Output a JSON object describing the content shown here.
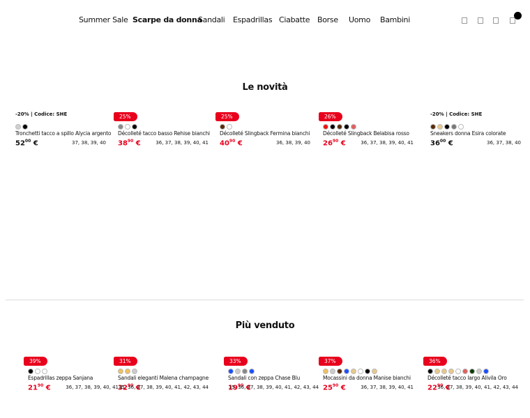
{
  "nav": {
    "items": [
      "Summer Sale",
      "Scarpe da donna",
      "Sandali",
      "Espadrillas",
      "Ciabatte",
      "Borse",
      "Uomo",
      "Bambini"
    ],
    "active": 1
  },
  "sections": [
    {
      "title": "Le novità",
      "products": [
        {
          "promo": "-20% | Codice: SHE",
          "swatches": [
            "#d0d0d0",
            "#000000"
          ],
          "name": "Tronchetti tacco a spillo Alycia argento",
          "price": {
            "main": "52",
            "cents": "00",
            "currency": "€"
          },
          "sizes": "37, 38, 39, 40",
          "sale": false
        },
        {
          "badge": "25%",
          "swatches": [
            "#8a8a8a",
            "#ffffff",
            "#000000"
          ],
          "name": "Décolleté tacco basso Rehise bianchi",
          "price": {
            "main": "38",
            "cents": "90",
            "currency": "€"
          },
          "sizes": "36, 37, 38, 39, 40, 41",
          "sale": true
        },
        {
          "badge": "25%",
          "swatches": [
            "#5a2a0a",
            "#ffffff"
          ],
          "name": "Décolleté Slingback Fermina bianchi",
          "price": {
            "main": "40",
            "cents": "90",
            "currency": "€"
          },
          "sizes": "36, 38, 39, 40",
          "sale": true
        },
        {
          "badge": "26%",
          "swatches": [
            "#ee1111",
            "#000000",
            "#5a2a0a",
            "#000000",
            "#e06060"
          ],
          "name": "Décolleté Slingback Belabisa rosso",
          "price": {
            "main": "26",
            "cents": "90",
            "currency": "€"
          },
          "sizes": "36, 37, 38, 39, 40, 41",
          "sale": true
        },
        {
          "promo": "-20% | Codice: SHE",
          "swatches": [
            "#5a2a0a",
            "#e8c88a",
            "#000000",
            "#777777",
            "#ffffff"
          ],
          "name": "Sneakers donna Esira colorate",
          "price": {
            "main": "36",
            "cents": "00",
            "currency": "€"
          },
          "sizes": "36, 37, 38, 40",
          "sale": false
        }
      ]
    },
    {
      "title": "Più venduto",
      "products": [
        {
          "badge": "39%",
          "swatches": [
            "#000000",
            "#ffffff",
            "#ffffff"
          ],
          "name": "Espadrillas zeppa Sanjana",
          "price": {
            "main": "21",
            "cents": "90",
            "currency": "€"
          },
          "sizes": "36, 37, 38, 39, 40, 41",
          "sale": true
        },
        {
          "badge": "31%",
          "swatches": [
            "#f0c060",
            "#f0c060",
            "#cccccc"
          ],
          "name": "Sandali eleganti Malena champagne",
          "price": {
            "main": "32",
            "cents": "90",
            "currency": "€"
          },
          "sizes": "35, 36, 37, 38, 39, 40, 41, 42, 43, 44",
          "sale": true
        },
        {
          "badge": "33%",
          "swatches": [
            "#1a4fff",
            "#cccccc",
            "#888888",
            "#1a4fff"
          ],
          "name": "Sandali con zeppa Chase Blu",
          "price": {
            "main": "19",
            "cents": "90",
            "currency": "€"
          },
          "sizes": "35, 36, 37, 38, 39, 40, 41, 42, 43, 44",
          "sale": true
        },
        {
          "badge": "37%",
          "swatches": [
            "#f0c060",
            "#cccccc",
            "#5a2a0a",
            "#1a4fff",
            "#e8c88a",
            "#ffffff",
            "#000000",
            "#e8c88a"
          ],
          "name": "Mocassini da donna Manise bianchi",
          "price": {
            "main": "25",
            "cents": "90",
            "currency": "€"
          },
          "sizes": "36, 37, 38, 39, 40, 41",
          "sale": true
        },
        {
          "badge": "36%",
          "swatches": [
            "#000000",
            "#e8c88a",
            "#e8c88a",
            "#e8c88a",
            "#ffffff",
            "#e06060",
            "#0a3a0a",
            "#cccccc",
            "#1a4fff"
          ],
          "name": "Décolleté tacco largo Alivila Oro",
          "price": {
            "main": "22",
            "cents": "90",
            "currency": "€"
          },
          "sizes": "36, 37, 38, 39, 40, 41, 42, 43, 44",
          "sale": true
        }
      ]
    }
  ]
}
